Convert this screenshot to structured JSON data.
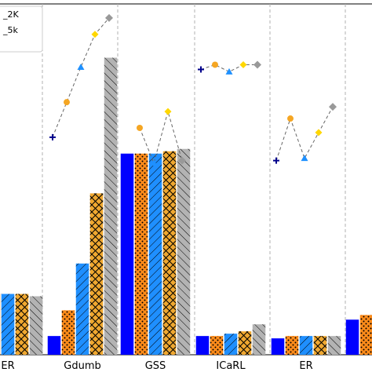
{
  "chart_data": {
    "type": "bar",
    "title": "",
    "xlabel": "",
    "ylabel": "",
    "categories": [
      "ER",
      "Gdumb",
      "GSS",
      "ICaRL",
      "ER",
      ""
    ],
    "category_labels": [
      "ER",
      "Gdumb",
      "GSS",
      "ICaRL",
      "ER",
      ""
    ],
    "grid": "vertical dashed separators between groups",
    "legend": {
      "placement": "top-left",
      "entries": [
        "_2K",
        "_5k"
      ]
    },
    "bar_series": [
      {
        "color": "#0000ff",
        "hatch": "none",
        "values": [
          26,
          8,
          86,
          8,
          7,
          15
        ]
      },
      {
        "color": "#ff8c1a",
        "hatch": "dots",
        "values": [
          26,
          19,
          86,
          8,
          8,
          17
        ]
      },
      {
        "color": "#1f8fff",
        "hatch": "diagonal",
        "values": [
          26,
          39,
          86,
          9,
          8,
          18
        ]
      },
      {
        "color": "#f0a830",
        "hatch": "crosshatch",
        "values": [
          26,
          69,
          87,
          10,
          8,
          19
        ]
      },
      {
        "color": "#b3b3b3",
        "hatch": "backslash",
        "values": [
          25,
          127,
          88,
          13,
          8,
          20
        ]
      }
    ],
    "marker_series": [
      {
        "marker": "plus",
        "color": "#00008b",
        "values": [
          null,
          93,
          null,
          122,
          83,
          null
        ]
      },
      {
        "marker": "circle",
        "color": "#f5a623",
        "values": [
          null,
          108,
          97,
          124,
          101,
          null
        ]
      },
      {
        "marker": "triangle",
        "color": "#1e90ff",
        "values": [
          null,
          123,
          82,
          121,
          84,
          null
        ]
      },
      {
        "marker": "square",
        "color": "#ffd700",
        "values": [
          null,
          137,
          104,
          124,
          95,
          null
        ]
      },
      {
        "marker": "diamond",
        "color": "#999999",
        "values": [
          null,
          144,
          83,
          124,
          106,
          null
        ]
      }
    ],
    "ylim": [
      0,
      150
    ]
  }
}
